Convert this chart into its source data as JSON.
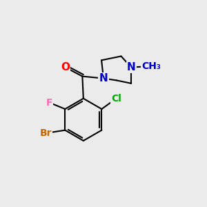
{
  "bg_color": "#ebebeb",
  "bond_color": "#000000",
  "bond_width": 1.5,
  "atom_colors": {
    "O": "#ff0000",
    "F": "#ff69b4",
    "Br": "#cc6600",
    "Cl": "#00aa00",
    "N": "#0000cc",
    "C": "#000000"
  },
  "font_size": 10,
  "font_size_methyl": 9
}
